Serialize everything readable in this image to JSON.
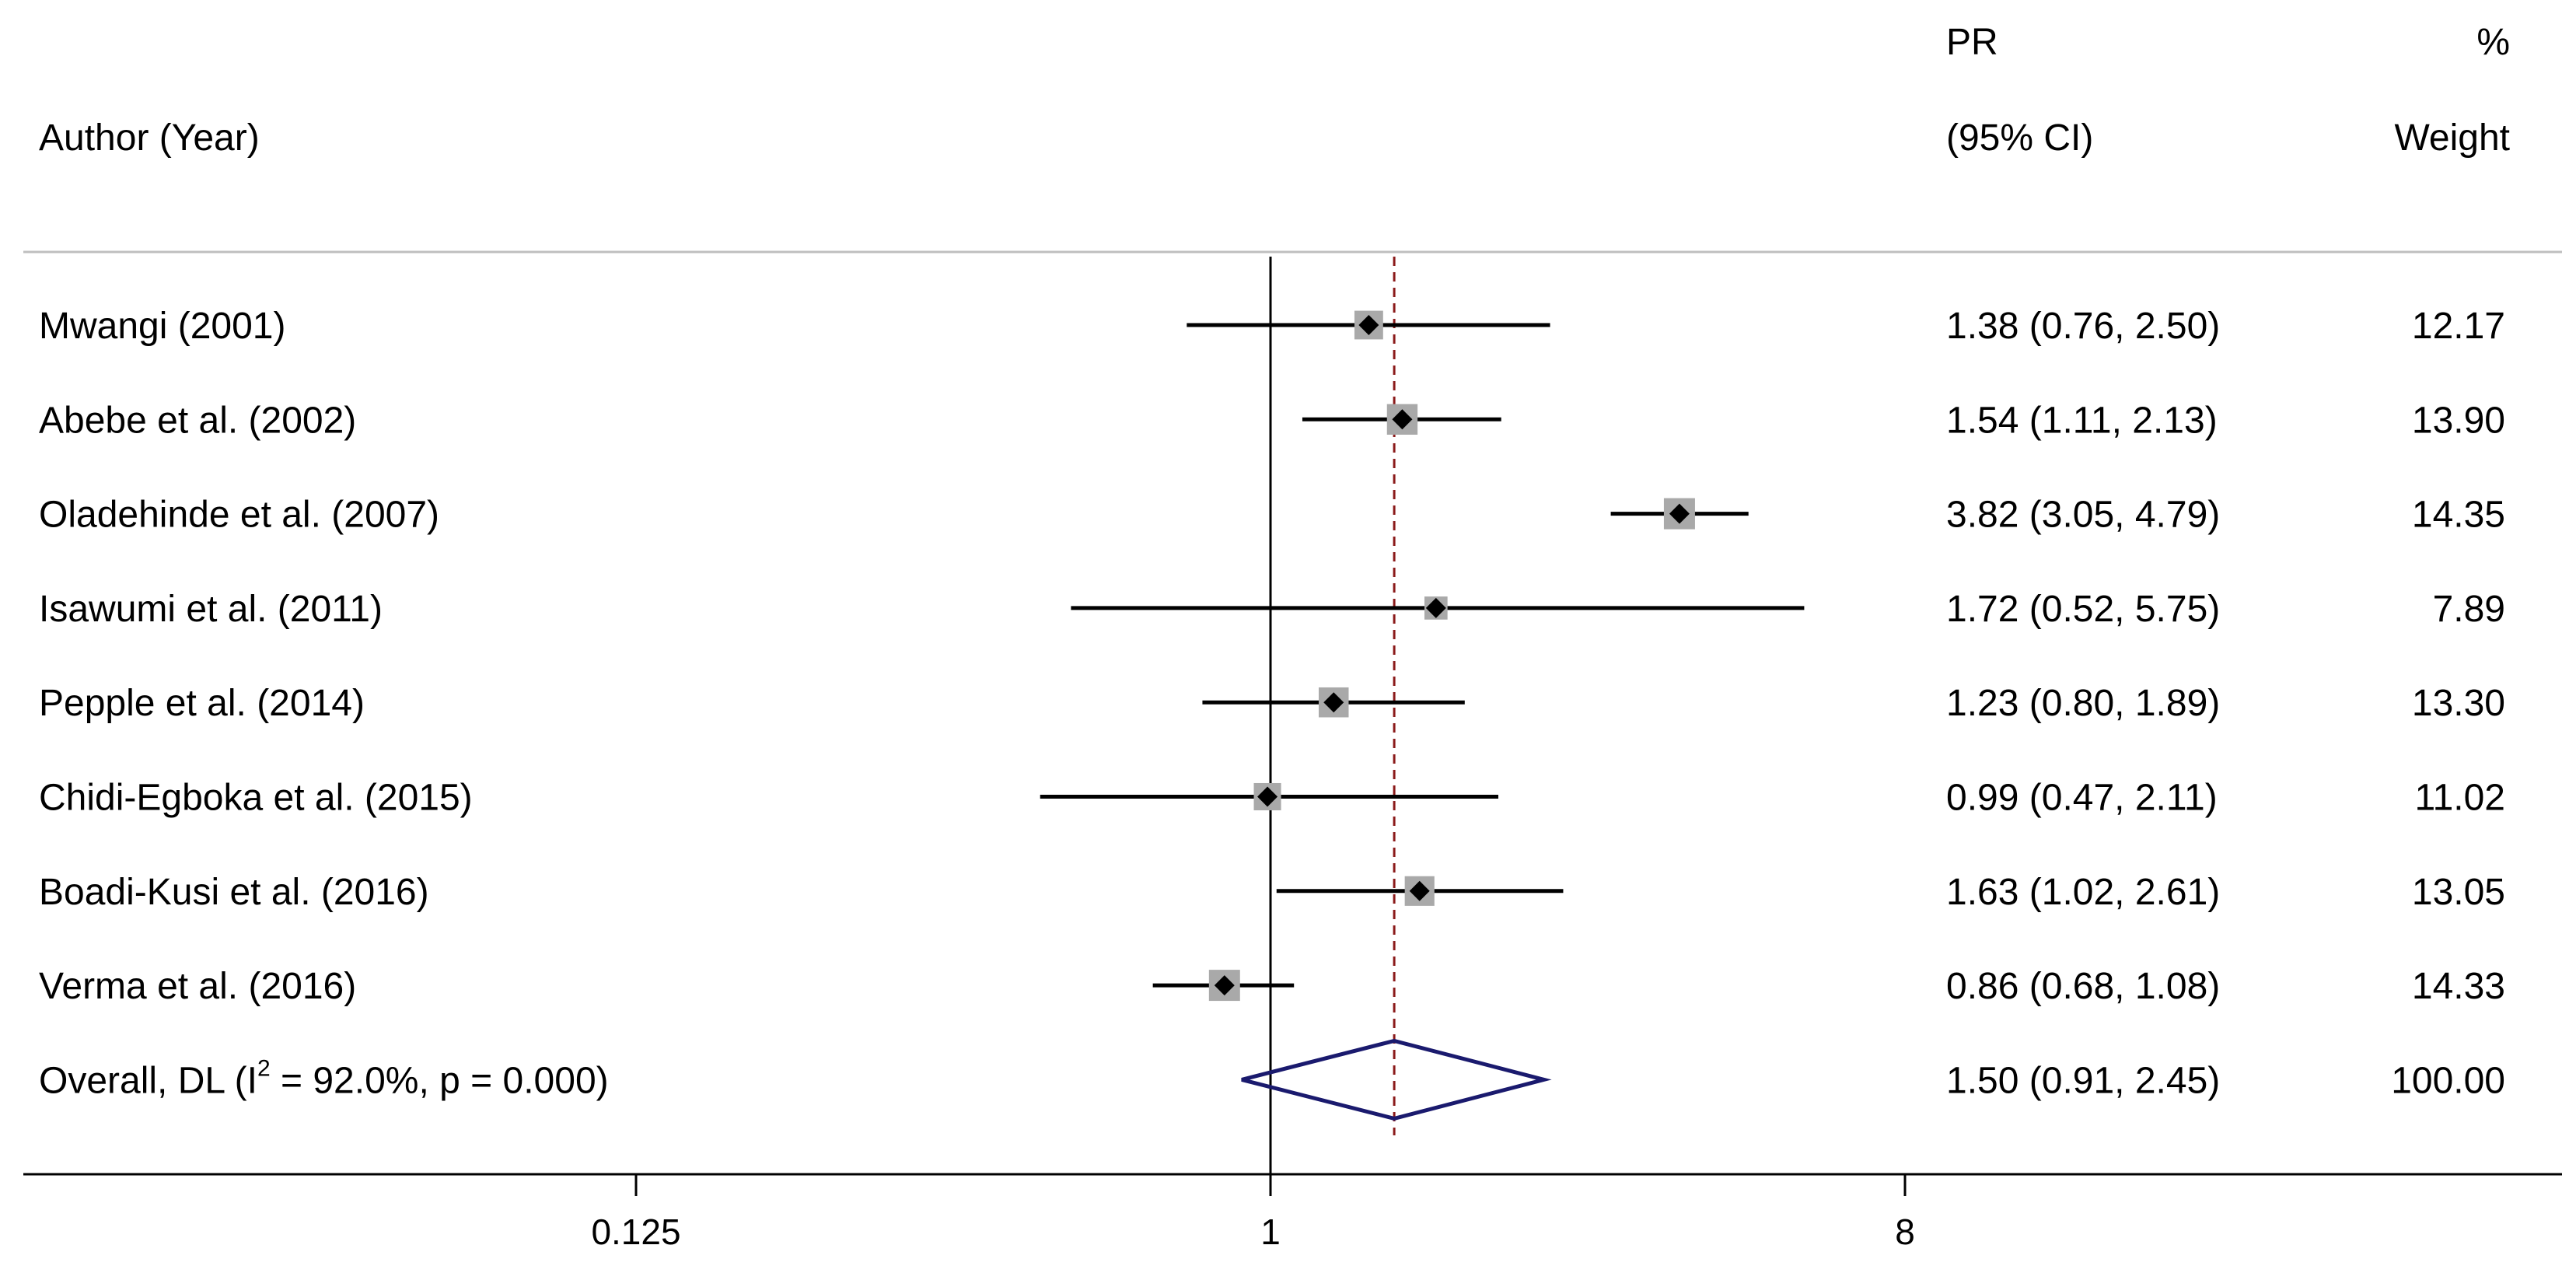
{
  "headers": {
    "author": "Author (Year)",
    "pr_line1": "PR",
    "pr_line2": "(95% CI)",
    "weight_line1": "%",
    "weight_line2": "Weight"
  },
  "chart_data": {
    "type": "forest",
    "x_scale": "log2",
    "xlim": [
      0.125,
      8
    ],
    "xticks": [
      {
        "value": 0.125,
        "label": "0.125"
      },
      {
        "value": 1,
        "label": "1"
      },
      {
        "value": 8,
        "label": "8"
      }
    ],
    "null_line": 1,
    "pooled_line": 1.5,
    "studies": [
      {
        "label": "Mwangi  (2001)",
        "estimate": 1.38,
        "lower": 0.76,
        "upper": 2.5,
        "ci_text": "1.38 (0.76, 2.50)",
        "weight": 12.17,
        "weight_text": "12.17"
      },
      {
        "label": "Abebe et al.  (2002)",
        "estimate": 1.54,
        "lower": 1.11,
        "upper": 2.13,
        "ci_text": "1.54 (1.11, 2.13)",
        "weight": 13.9,
        "weight_text": "13.90"
      },
      {
        "label": "Oladehinde et al.  (2007)",
        "estimate": 3.82,
        "lower": 3.05,
        "upper": 4.79,
        "ci_text": "3.82 (3.05, 4.79)",
        "weight": 14.35,
        "weight_text": "14.35"
      },
      {
        "label": "Isawumi et al.  (2011)",
        "estimate": 1.72,
        "lower": 0.52,
        "upper": 5.75,
        "ci_text": "1.72 (0.52, 5.75)",
        "weight": 7.89,
        "weight_text": "7.89"
      },
      {
        "label": "Pepple et al.  (2014)",
        "estimate": 1.23,
        "lower": 0.8,
        "upper": 1.89,
        "ci_text": "1.23 (0.80, 1.89)",
        "weight": 13.3,
        "weight_text": "13.30"
      },
      {
        "label": "Chidi-Egboka et al.  (2015)",
        "estimate": 0.99,
        "lower": 0.47,
        "upper": 2.11,
        "ci_text": "0.99 (0.47, 2.11)",
        "weight": 11.02,
        "weight_text": "11.02"
      },
      {
        "label": "Boadi-Kusi et al.  (2016)",
        "estimate": 1.63,
        "lower": 1.02,
        "upper": 2.61,
        "ci_text": "1.63 (1.02, 2.61)",
        "weight": 13.05,
        "weight_text": "13.05"
      },
      {
        "label": "Verma et al.  (2016)",
        "estimate": 0.86,
        "lower": 0.68,
        "upper": 1.08,
        "ci_text": "0.86 (0.68, 1.08)",
        "weight": 14.33,
        "weight_text": "14.33"
      }
    ],
    "overall": {
      "label_prefix": "Overall, DL (I",
      "label_sup": "2",
      "label_suffix": " = 92.0%, p = 0.000)",
      "estimate": 1.5,
      "lower": 0.91,
      "upper": 2.45,
      "ci_text": "1.50 (0.91, 2.45)",
      "weight_text": "100.00"
    },
    "colors": {
      "ci_line": "#000000",
      "weight_box": "#a9a9a9",
      "point": "#000000",
      "diamond": "#1a1a6e",
      "pooled_line": "#8b1a1a",
      "rule": "#bfbfbf"
    }
  }
}
